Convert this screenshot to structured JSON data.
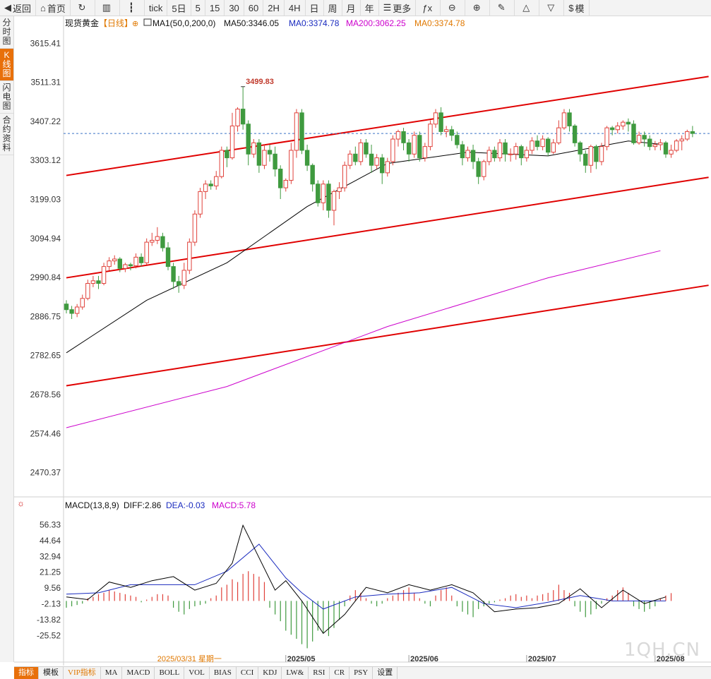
{
  "toolbar": {
    "items": [
      {
        "name": "back-button",
        "icon": "◀",
        "label": "返回"
      },
      {
        "name": "home-button",
        "icon": "⌂",
        "label": "首页"
      },
      {
        "name": "refresh-button",
        "icon": "↻",
        "label": ""
      },
      {
        "name": "chart-type-button",
        "icon": "▥",
        "label": ""
      },
      {
        "name": "candle-type-button",
        "icon": "┇",
        "label": ""
      },
      {
        "name": "period-tick",
        "icon": "",
        "label": "tick"
      },
      {
        "name": "period-5day",
        "icon": "",
        "label": "5日"
      },
      {
        "name": "period-5",
        "icon": "",
        "label": "5"
      },
      {
        "name": "period-15",
        "icon": "",
        "label": "15"
      },
      {
        "name": "period-30",
        "icon": "",
        "label": "30"
      },
      {
        "name": "period-60",
        "icon": "",
        "label": "60"
      },
      {
        "name": "period-2h",
        "icon": "",
        "label": "2H"
      },
      {
        "name": "period-4h",
        "icon": "",
        "label": "4H"
      },
      {
        "name": "period-day",
        "icon": "",
        "label": "日"
      },
      {
        "name": "period-week",
        "icon": "",
        "label": "周"
      },
      {
        "name": "period-month",
        "icon": "",
        "label": "月"
      },
      {
        "name": "period-year",
        "icon": "",
        "label": "年"
      },
      {
        "name": "more-button",
        "icon": "☰",
        "label": "更多"
      },
      {
        "name": "formula-button",
        "icon": "ƒx",
        "label": ""
      },
      {
        "name": "zoom-out-button",
        "icon": "⊖",
        "label": ""
      },
      {
        "name": "zoom-in-button",
        "icon": "⊕",
        "label": ""
      },
      {
        "name": "draw-button",
        "icon": "✎",
        "label": ""
      },
      {
        "name": "triangle-up-button",
        "icon": "△",
        "label": ""
      },
      {
        "name": "triangle-down-button",
        "icon": "▽",
        "label": ""
      },
      {
        "name": "dollar-button",
        "icon": "$",
        "label": "模"
      }
    ]
  },
  "sidebar": {
    "items": [
      {
        "name": "tab-timeshare",
        "label": "分时图",
        "active": false
      },
      {
        "name": "tab-kline",
        "label": "K线图",
        "active": true
      },
      {
        "name": "tab-flash",
        "label": "闪电图",
        "active": false
      },
      {
        "name": "tab-contract",
        "label": "合约资料",
        "active": false
      }
    ]
  },
  "legend": {
    "instrument": "现货黄金",
    "period": "【日线】",
    "indicator": "MA1(50,0,200,0)",
    "ma50": "MA50:3346.05",
    "ma0a": "MA0:3374.78",
    "ma200": "MA200:3062.25",
    "ma0b": "MA0:3374.78"
  },
  "macd_legend": {
    "name": "MACD(13,8,9)",
    "diff": "DIFF:2.86",
    "dea": "DEA:-0.03",
    "macd": "MACD:5.78"
  },
  "bottombar": {
    "items": [
      {
        "name": "tab-indicator",
        "label": "指标",
        "active": true,
        "vip": false
      },
      {
        "name": "tab-template",
        "label": "模板",
        "active": false,
        "vip": false
      },
      {
        "name": "tab-vip-indicator",
        "label": "VIP指标",
        "active": false,
        "vip": true
      },
      {
        "name": "tab-ma",
        "label": "MA",
        "active": false,
        "vip": false
      },
      {
        "name": "tab-macd",
        "label": "MACD",
        "active": false,
        "vip": false
      },
      {
        "name": "tab-boll",
        "label": "BOLL",
        "active": false,
        "vip": false
      },
      {
        "name": "tab-vol",
        "label": "VOL",
        "active": false,
        "vip": false
      },
      {
        "name": "tab-bias",
        "label": "BIAS",
        "active": false,
        "vip": false
      },
      {
        "name": "tab-cci",
        "label": "CCI",
        "active": false,
        "vip": false
      },
      {
        "name": "tab-kdj",
        "label": "KDJ",
        "active": false,
        "vip": false
      },
      {
        "name": "tab-lw",
        "label": "LW&",
        "active": false,
        "vip": false
      },
      {
        "name": "tab-rsi",
        "label": "RSI",
        "active": false,
        "vip": false
      },
      {
        "name": "tab-cr",
        "label": "CR",
        "active": false,
        "vip": false
      },
      {
        "name": "tab-psy",
        "label": "PSY",
        "active": false,
        "vip": false
      },
      {
        "name": "tab-settings",
        "label": "设置",
        "active": false,
        "vip": false
      }
    ]
  },
  "watermark": "1QH.CN",
  "colors": {
    "up": "#e0413a",
    "down": "#3f9a3f",
    "ma50": "#000000",
    "ma200": "#cc00cc",
    "channel": "#e00000",
    "dea": "#1a2bbf"
  },
  "chart_data": [
    {
      "type": "candlestick",
      "title": "现货黄金 日线",
      "ylim": [
        2430,
        3650
      ],
      "yticks": [
        3615.41,
        3511.31,
        3407.22,
        3303.12,
        3199.03,
        3094.94,
        2990.84,
        2886.75,
        2782.65,
        2678.56,
        2574.46,
        2470.37
      ],
      "x_labels": [
        "2025/05",
        "2025/06",
        "2025/07",
        "2025/08"
      ],
      "x_label_index": [
        41,
        64,
        86,
        110
      ],
      "cursor_date": "2025/03/31 星期一",
      "cursor_index": 23,
      "last_price": 3375,
      "high_annotation": {
        "label": "3499.83",
        "value": 3499.83,
        "index": 33
      },
      "candles": [
        [
          2920,
          2905,
          2930,
          2895
        ],
        [
          2905,
          2895,
          2915,
          2880
        ],
        [
          2895,
          2912,
          2920,
          2885
        ],
        [
          2912,
          2935,
          2945,
          2905
        ],
        [
          2935,
          2975,
          2985,
          2930
        ],
        [
          2975,
          2982,
          2995,
          2965
        ],
        [
          2982,
          2975,
          2995,
          2960
        ],
        [
          2975,
          3020,
          3030,
          2970
        ],
        [
          3020,
          3035,
          3045,
          3010
        ],
        [
          3035,
          3040,
          3050,
          3025
        ],
        [
          3040,
          3015,
          3045,
          3005
        ],
        [
          3015,
          3025,
          3030,
          3005
        ],
        [
          3025,
          3022,
          3030,
          3010
        ],
        [
          3022,
          3045,
          3055,
          3015
        ],
        [
          3045,
          3030,
          3055,
          3020
        ],
        [
          3030,
          3085,
          3095,
          3025
        ],
        [
          3085,
          3090,
          3110,
          3075
        ],
        [
          3090,
          3100,
          3125,
          3080
        ],
        [
          3100,
          3070,
          3110,
          3060
        ],
        [
          3070,
          3020,
          3085,
          3010
        ],
        [
          3020,
          2980,
          3030,
          2960
        ],
        [
          2980,
          2970,
          2995,
          2950
        ],
        [
          2970,
          3010,
          3030,
          2960
        ],
        [
          3010,
          3085,
          3095,
          3000
        ],
        [
          3085,
          3160,
          3170,
          3075
        ],
        [
          3160,
          3220,
          3230,
          3150
        ],
        [
          3220,
          3240,
          3250,
          3200
        ],
        [
          3240,
          3235,
          3250,
          3225
        ],
        [
          3235,
          3260,
          3275,
          3225
        ],
        [
          3260,
          3330,
          3340,
          3255
        ],
        [
          3330,
          3310,
          3340,
          3285
        ],
        [
          3310,
          3395,
          3430,
          3305
        ],
        [
          3395,
          3440,
          3445,
          3380
        ],
        [
          3440,
          3400,
          3499.83,
          3385
        ],
        [
          3400,
          3320,
          3410,
          3290
        ],
        [
          3320,
          3350,
          3360,
          3310
        ],
        [
          3350,
          3290,
          3360,
          3270
        ],
        [
          3290,
          3330,
          3345,
          3280
        ],
        [
          3330,
          3320,
          3345,
          3300
        ],
        [
          3320,
          3280,
          3340,
          3260
        ],
        [
          3280,
          3230,
          3290,
          3200
        ],
        [
          3230,
          3250,
          3255,
          3220
        ],
        [
          3250,
          3330,
          3350,
          3240
        ],
        [
          3330,
          3430,
          3440,
          3310
        ],
        [
          3430,
          3330,
          3440,
          3320
        ],
        [
          3330,
          3290,
          3345,
          3275
        ],
        [
          3290,
          3240,
          3295,
          3220
        ],
        [
          3240,
          3190,
          3250,
          3180
        ],
        [
          3190,
          3240,
          3250,
          3170
        ],
        [
          3240,
          3170,
          3250,
          3150
        ],
        [
          3170,
          3220,
          3225,
          3130
        ],
        [
          3220,
          3230,
          3245,
          3200
        ],
        [
          3230,
          3290,
          3300,
          3220
        ],
        [
          3290,
          3320,
          3330,
          3280
        ],
        [
          3320,
          3300,
          3340,
          3290
        ],
        [
          3300,
          3350,
          3360,
          3290
        ],
        [
          3350,
          3320,
          3360,
          3310
        ],
        [
          3320,
          3290,
          3345,
          3270
        ],
        [
          3290,
          3310,
          3320,
          3280
        ],
        [
          3310,
          3270,
          3320,
          3240
        ],
        [
          3270,
          3300,
          3310,
          3260
        ],
        [
          3300,
          3360,
          3370,
          3290
        ],
        [
          3360,
          3380,
          3385,
          3340
        ],
        [
          3380,
          3350,
          3390,
          3330
        ],
        [
          3350,
          3320,
          3360,
          3300
        ],
        [
          3320,
          3370,
          3380,
          3310
        ],
        [
          3370,
          3310,
          3380,
          3300
        ],
        [
          3310,
          3340,
          3350,
          3300
        ],
        [
          3340,
          3400,
          3410,
          3330
        ],
        [
          3400,
          3430,
          3440,
          3390
        ],
        [
          3430,
          3380,
          3445,
          3370
        ],
        [
          3380,
          3385,
          3395,
          3365
        ],
        [
          3385,
          3370,
          3395,
          3355
        ],
        [
          3370,
          3345,
          3380,
          3335
        ],
        [
          3345,
          3310,
          3355,
          3290
        ],
        [
          3310,
          3330,
          3340,
          3300
        ],
        [
          3330,
          3300,
          3345,
          3280
        ],
        [
          3300,
          3260,
          3310,
          3240
        ],
        [
          3260,
          3300,
          3305,
          3250
        ],
        [
          3300,
          3330,
          3340,
          3290
        ],
        [
          3330,
          3310,
          3340,
          3300
        ],
        [
          3310,
          3350,
          3360,
          3300
        ],
        [
          3350,
          3320,
          3360,
          3300
        ],
        [
          3320,
          3320,
          3335,
          3300
        ],
        [
          3320,
          3340,
          3350,
          3305
        ],
        [
          3340,
          3310,
          3345,
          3290
        ],
        [
          3310,
          3330,
          3340,
          3300
        ],
        [
          3330,
          3355,
          3365,
          3320
        ],
        [
          3355,
          3340,
          3370,
          3330
        ],
        [
          3340,
          3360,
          3370,
          3330
        ],
        [
          3360,
          3325,
          3365,
          3315
        ],
        [
          3325,
          3350,
          3360,
          3320
        ],
        [
          3350,
          3390,
          3410,
          3345
        ],
        [
          3390,
          3430,
          3440,
          3385
        ],
        [
          3430,
          3395,
          3440,
          3380
        ],
        [
          3395,
          3350,
          3400,
          3340
        ],
        [
          3350,
          3320,
          3355,
          3300
        ],
        [
          3320,
          3290,
          3330,
          3270
        ],
        [
          3290,
          3340,
          3345,
          3270
        ],
        [
          3340,
          3300,
          3345,
          3280
        ],
        [
          3300,
          3340,
          3350,
          3290
        ],
        [
          3340,
          3390,
          3395,
          3330
        ],
        [
          3390,
          3385,
          3395,
          3370
        ],
        [
          3385,
          3395,
          3405,
          3375
        ],
        [
          3395,
          3405,
          3410,
          3385
        ],
        [
          3405,
          3400,
          3415,
          3380
        ],
        [
          3400,
          3350,
          3410,
          3345
        ],
        [
          3350,
          3370,
          3380,
          3345
        ],
        [
          3370,
          3360,
          3380,
          3340
        ],
        [
          3360,
          3340,
          3370,
          3330
        ],
        [
          3340,
          3345,
          3355,
          3330
        ],
        [
          3345,
          3350,
          3360,
          3330
        ],
        [
          3350,
          3320,
          3355,
          3310
        ],
        [
          3320,
          3330,
          3345,
          3310
        ],
        [
          3330,
          3355,
          3360,
          3325
        ],
        [
          3355,
          3360,
          3370,
          3330
        ],
        [
          3360,
          3380,
          3385,
          3355
        ],
        [
          3380,
          3375,
          3395,
          3365
        ]
      ],
      "ma50": {
        "name": "MA50",
        "x": [
          0,
          15,
          30,
          45,
          60,
          75,
          90,
          105,
          111
        ],
        "values": [
          2790,
          2930,
          3030,
          3180,
          3295,
          3325,
          3315,
          3355,
          3346.05
        ]
      },
      "ma200": {
        "name": "MA200",
        "x": [
          0,
          30,
          60,
          90,
          111
        ],
        "values": [
          2590,
          2700,
          2860,
          2990,
          3062.25
        ]
      },
      "channel_lines": [
        {
          "x0": 0,
          "y0": 3263,
          "x1": 120,
          "y1": 3527
        },
        {
          "x0": 0,
          "y0": 2990,
          "x1": 120,
          "y1": 3258
        },
        {
          "x0": 0,
          "y0": 2702,
          "x1": 120,
          "y1": 2970
        }
      ]
    },
    {
      "type": "bar",
      "title": "MACD(13,8,9)",
      "ylim": [
        -40,
        66
      ],
      "yticks": [
        56.33,
        44.64,
        32.94,
        21.25,
        9.56,
        -2.13,
        -13.82,
        -25.52
      ],
      "diff": {
        "name": "DIFF",
        "x": [
          0,
          4,
          8,
          12,
          16,
          20,
          24,
          28,
          31,
          33,
          35,
          39,
          41,
          44,
          48,
          52,
          56,
          60,
          64,
          68,
          72,
          76,
          80,
          84,
          88,
          92,
          96,
          100,
          104,
          108,
          112
        ],
        "values": [
          3,
          1,
          14,
          10,
          15,
          18,
          8,
          13,
          28,
          56,
          40,
          8,
          15,
          0,
          -24,
          -10,
          10,
          6,
          12,
          8,
          12,
          6,
          -8,
          -6,
          -5,
          -2,
          9,
          -5,
          8,
          -2,
          3
        ]
      },
      "dea": {
        "name": "DEA",
        "x": [
          0,
          6,
          12,
          18,
          24,
          30,
          36,
          41,
          44,
          48,
          54,
          60,
          66,
          72,
          78,
          84,
          90,
          96,
          102,
          108,
          112
        ],
        "values": [
          5,
          6,
          12,
          12,
          12,
          22,
          42,
          17,
          6,
          -6,
          3,
          5,
          6,
          10,
          -2,
          -5,
          -1,
          4,
          0,
          0,
          0
        ]
      },
      "macd_bars": [
        -5,
        -4,
        -3,
        -2,
        2,
        3,
        5,
        6,
        8,
        7,
        6,
        5,
        4,
        3,
        -1,
        1,
        3,
        5,
        5,
        4,
        -5,
        -8,
        -10,
        -6,
        -4,
        -3,
        -2,
        2,
        4,
        10,
        12,
        16,
        14,
        20,
        22,
        20,
        18,
        14,
        -5,
        -10,
        -15,
        -22,
        -25,
        -28,
        -32,
        -35,
        -30,
        -22,
        -24,
        -26,
        -20,
        -14,
        -4,
        4,
        8,
        6,
        2,
        -2,
        -4,
        -2,
        2,
        4,
        6,
        8,
        10,
        6,
        2,
        -2,
        -4,
        4,
        8,
        10,
        4,
        -4,
        -8,
        -10,
        -12,
        -6,
        -4,
        -2,
        -1,
        1,
        2,
        4,
        5,
        3,
        4,
        2,
        4,
        5,
        6,
        8,
        12,
        8,
        6,
        -4,
        -8,
        -12,
        -10,
        -6,
        -2,
        2,
        4,
        8,
        10,
        6,
        -4,
        -6,
        -8,
        -6,
        -4,
        2,
        4,
        5.78
      ]
    }
  ]
}
